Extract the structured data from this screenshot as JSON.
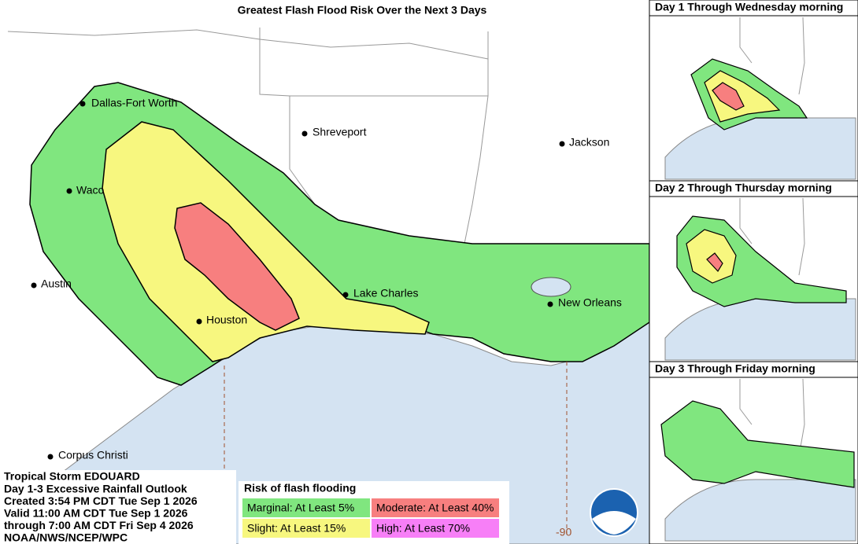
{
  "title": "Greatest Flash Flood Risk Over the Next 3 Days",
  "cities": [
    "Dallas-Fort Worth",
    "Waco",
    "Austin",
    "Houston",
    "Corpus Christi",
    "Shreveport",
    "Jackson",
    "Lake Charles",
    "New Orleans"
  ],
  "longitude_label": "-90",
  "insets": [
    {
      "title": "Day 1 Through Wednesday morning"
    },
    {
      "title": "Day 2 Through Thursday morning"
    },
    {
      "title": "Day 3 Through Friday morning"
    }
  ],
  "info": [
    "Tropical Storm EDOUARD",
    "Day 1-3 Excessive Rainfall Outlook",
    "Created 3:54 PM CDT Tue Sep 1 2026",
    "Valid 11:00 AM CDT Tue Sep 1 2026",
    "through 7:00 AM CDT Fri Sep 4 2026",
    "NOAA/NWS/NCEP/WPC"
  ],
  "legend": {
    "title": "Risk of flash flooding",
    "items": [
      {
        "label": "Marginal: At Least 5%",
        "color": "#80e67f"
      },
      {
        "label": "Moderate: At Least 40%",
        "color": "#f77f7f"
      },
      {
        "label": "Slight: At Least 15%",
        "color": "#f7f77f"
      },
      {
        "label": "High: At Least 70%",
        "color": "#f77ff7"
      }
    ]
  }
}
